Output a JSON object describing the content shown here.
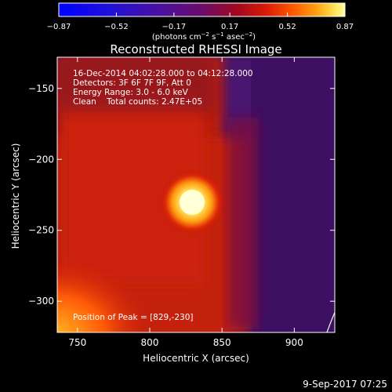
{
  "chart_data": {
    "type": "heatmap",
    "title": "Reconstructed RHESSI Image",
    "xlabel": "Heliocentric X (arcsec)",
    "ylabel": "Heliocentric Y (arcsec)",
    "xlim": [
      736,
      928
    ],
    "ylim": [
      -322,
      -128
    ],
    "x_ticks": [
      750,
      800,
      850,
      900
    ],
    "y_ticks": [
      -150,
      -200,
      -250,
      -300
    ],
    "colorbar": {
      "min": -0.87,
      "max": 0.87,
      "ticks": [
        -0.87,
        -0.52,
        -0.17,
        0.17,
        0.52,
        0.87
      ],
      "label_parts": [
        "(photons cm",
        "-2",
        " s",
        "-1",
        " asec",
        "-2",
        ")"
      ],
      "colormap": "rhessi-heat"
    },
    "info_lines": [
      "16-Dec-2014 04:02:28.000 to 04:12:28.000",
      "Detectors: 3F 6F 7F 9F, Att 0",
      "Energy Range: 3.0 - 6.0 keV",
      "Clean    Total counts: 2.47E+05"
    ],
    "peak_label": "Position of Peak = [829,-230]",
    "peak": {
      "x": 829,
      "y": -230
    },
    "footer_date": "9-Sep-2017 07:25",
    "colors": {
      "background": "#000000",
      "cmap_low": "#0000ff",
      "cmap_mid": "#5c0c7e",
      "cmap_high": "#ffff99",
      "text": "#ffffff"
    }
  }
}
